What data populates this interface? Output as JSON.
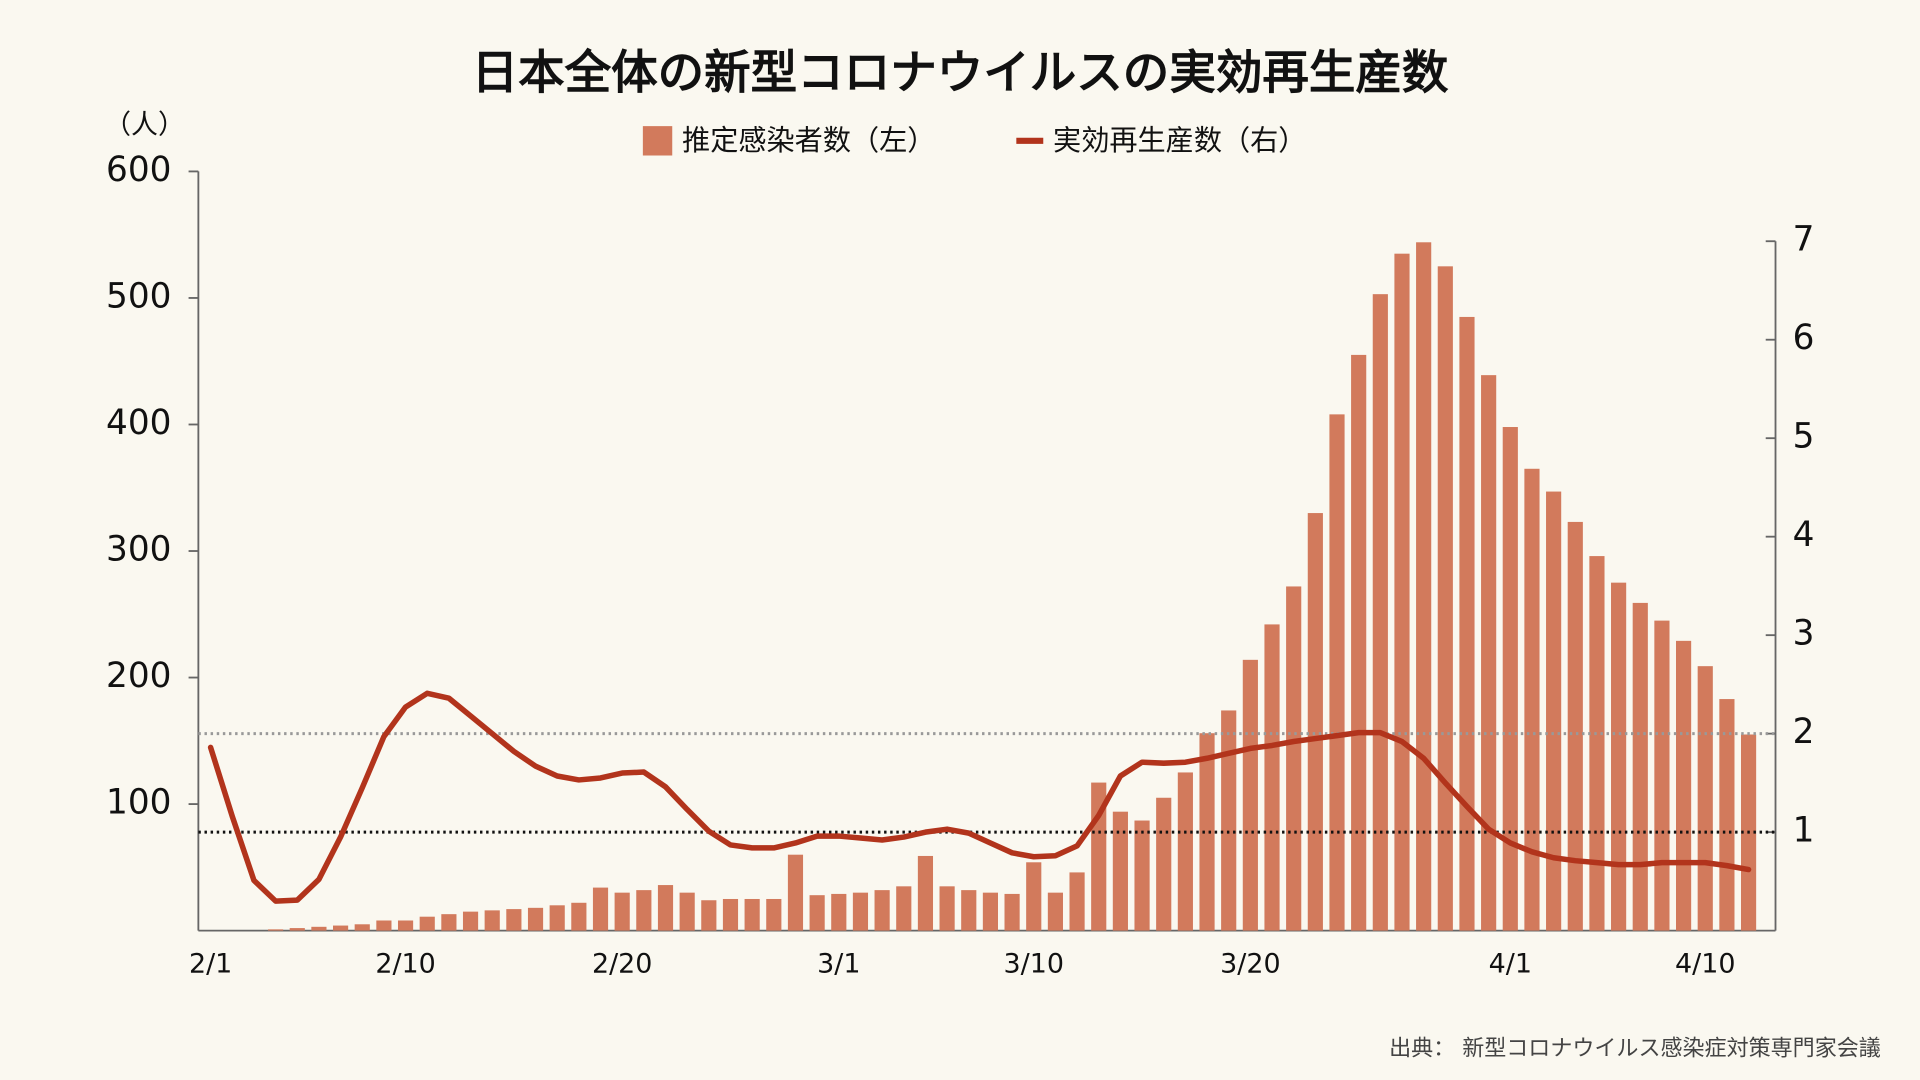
{
  "chart_data": {
    "type": "bar_line",
    "title": "日本全体の新型コロナウイルスの実効再生産数",
    "y_unit_label": "（人）",
    "source": "出典： 新型コロナウイルス感染症対策専門家会議",
    "categories": [
      "2/1",
      null,
      null,
      null,
      null,
      null,
      null,
      null,
      null,
      "2/10",
      null,
      null,
      null,
      null,
      null,
      null,
      null,
      null,
      null,
      "2/20",
      null,
      null,
      null,
      null,
      null,
      null,
      null,
      null,
      null,
      "3/1",
      null,
      null,
      null,
      null,
      null,
      null,
      null,
      null,
      "3/10",
      null,
      null,
      null,
      null,
      null,
      null,
      null,
      null,
      null,
      "3/20",
      null,
      null,
      null,
      null,
      null,
      null,
      null,
      null,
      null,
      null,
      null,
      "4/1",
      null,
      null,
      null,
      null,
      null,
      null,
      null,
      null,
      "4/10",
      null,
      null
    ],
    "series": [
      {
        "name": "推定感染者数（左）",
        "type": "bar",
        "axis": "y",
        "color": "#d27a5c",
        "values": [
          0,
          0,
          0,
          1,
          2,
          3,
          4,
          5,
          8,
          8,
          11,
          13,
          15,
          16,
          17,
          18,
          20,
          22,
          34,
          30,
          32,
          36,
          30,
          24,
          25,
          25,
          25,
          60,
          28,
          29,
          30,
          32,
          35,
          59,
          35,
          32,
          30,
          29,
          54,
          30,
          46,
          117,
          94,
          87,
          105,
          125,
          156,
          174,
          214,
          242,
          272,
          330,
          408,
          455,
          503,
          535,
          544,
          525,
          485,
          439,
          398,
          365,
          347,
          323,
          296,
          275,
          259,
          245,
          229,
          209,
          183,
          155
        ]
      },
      {
        "name": "実効再生産数（右）",
        "type": "line",
        "axis": "y2",
        "color": "#b2341c",
        "values": [
          1.86,
          1.16,
          0.51,
          0.3,
          0.31,
          0.52,
          0.95,
          1.45,
          1.97,
          2.27,
          2.41,
          2.36,
          2.18,
          2.0,
          1.82,
          1.67,
          1.57,
          1.53,
          1.55,
          1.6,
          1.61,
          1.46,
          1.23,
          1.01,
          0.87,
          0.84,
          0.84,
          0.89,
          0.96,
          0.96,
          0.94,
          0.92,
          0.95,
          1.0,
          1.03,
          0.99,
          0.89,
          0.79,
          0.75,
          0.76,
          0.86,
          1.17,
          1.57,
          1.71,
          1.7,
          1.71,
          1.75,
          1.8,
          1.85,
          1.88,
          1.92,
          1.95,
          1.98,
          2.01,
          2.01,
          1.92,
          1.75,
          1.5,
          1.26,
          1.03,
          0.89,
          0.8,
          0.74,
          0.71,
          0.69,
          0.67,
          0.67,
          0.69,
          0.69,
          0.69,
          0.66,
          0.62
        ]
      }
    ],
    "ylim": [
      0,
      600
    ],
    "yticks": [
      100,
      200,
      300,
      400,
      500,
      600
    ],
    "y2lim": [
      0,
      7
    ],
    "y2ticks": [
      1,
      2,
      3,
      4,
      5,
      6,
      7
    ],
    "reference_lines": [
      {
        "value": 2,
        "axis": "y2",
        "color": "#999999"
      },
      {
        "value": 1,
        "axis": "y2",
        "color": "#111111"
      }
    ]
  }
}
